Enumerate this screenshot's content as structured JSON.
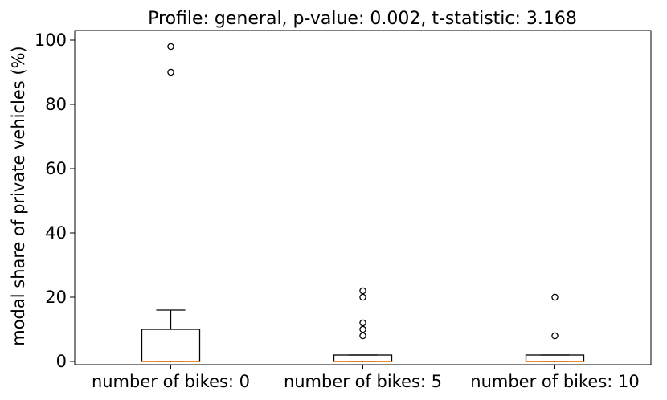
{
  "chart_data": {
    "type": "box",
    "title": "Profile: general, p-value: 0.002, t-statistic: 3.168",
    "xlabel": "",
    "ylabel": "modal share of private vehicles (%)",
    "ylim": [
      -1,
      103
    ],
    "yticks": [
      0,
      20,
      40,
      60,
      80,
      100
    ],
    "grid": false,
    "categories": [
      "number of bikes: 0",
      "number of bikes: 5",
      "number of bikes: 10"
    ],
    "boxes": [
      {
        "min": 0,
        "q1": 0,
        "median": 0,
        "q3": 10,
        "max": 16,
        "outliers": [
          98,
          90
        ]
      },
      {
        "min": 0,
        "q1": 0,
        "median": 0,
        "q3": 2,
        "max": 2,
        "outliers": [
          22,
          20,
          12,
          10,
          8
        ]
      },
      {
        "min": 0,
        "q1": 0,
        "median": 0,
        "q3": 2,
        "max": 2,
        "outliers": [
          20,
          8
        ]
      }
    ],
    "colors": {
      "box": "#000000",
      "median": "#ff7f0e",
      "axes": "#000000"
    }
  }
}
